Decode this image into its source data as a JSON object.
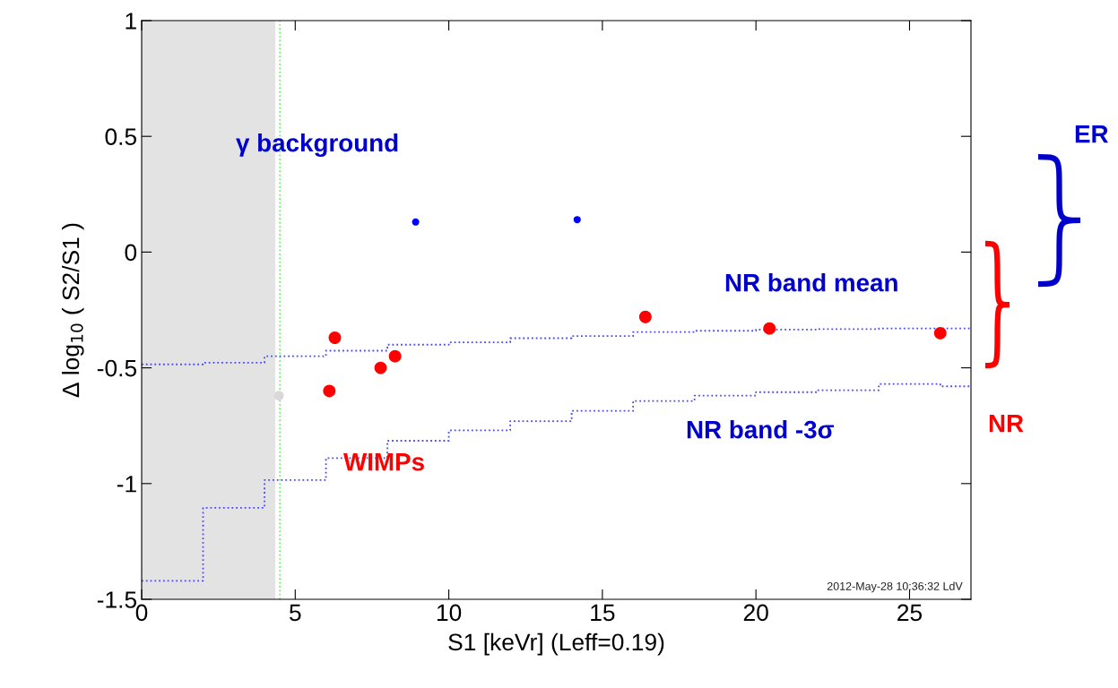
{
  "chart_data": {
    "type": "scatter",
    "xlabel": "S1 [keVr] (Leff=0.19)",
    "ylabel": "Δ log$_{10}$ ( S2/S1 )",
    "xlim": [
      0,
      27
    ],
    "ylim": [
      -1.5,
      1
    ],
    "xticks": [
      0,
      5,
      10,
      15,
      20,
      25
    ],
    "yticks": [
      -1.5,
      -1,
      -0.5,
      0,
      0.5,
      1
    ],
    "grid": false,
    "marker": "circle",
    "series": [
      {
        "color": "#ff0000",
        "x": [
          6.29,
          6.11,
          7.78,
          8.25,
          16.4,
          20.44,
          26.0
        ],
        "values": [
          -0.37,
          -0.6,
          -0.5,
          -0.45,
          -0.28,
          -0.33,
          -0.35
        ]
      },
      {
        "color": "#0000ff",
        "x": [
          8.92,
          14.18
        ],
        "values": [
          0.13,
          0.14
        ]
      },
      {
        "color": "#d9d9d9",
        "x": [
          4.47
        ],
        "values": [
          -0.62
        ]
      },
      {
        "type": "step",
        "color": "#4848ff",
        "line_style": "dotted",
        "marker": "none",
        "x": [
          0,
          2,
          4,
          6,
          8,
          10,
          12,
          14,
          16,
          18,
          20,
          22,
          24,
          26,
          27
        ],
        "values": [
          -0.485,
          -0.478,
          -0.45,
          -0.426,
          -0.4,
          -0.39,
          -0.372,
          -0.363,
          -0.345,
          -0.34,
          -0.335,
          -0.333,
          -0.33,
          -0.33,
          -0.33
        ]
      },
      {
        "type": "step",
        "color": "#4848ff",
        "line_style": "dotted",
        "marker": "none",
        "x": [
          0,
          2,
          4,
          6,
          8,
          10,
          12,
          14,
          16,
          18,
          20,
          22,
          24,
          26,
          27
        ],
        "values": [
          -1.42,
          -1.105,
          -0.985,
          -0.89,
          -0.815,
          -0.77,
          -0.73,
          -0.686,
          -0.643,
          -0.62,
          -0.605,
          -0.597,
          -0.57,
          -0.58,
          -0.58
        ]
      }
    ],
    "bands": [
      {
        "axis": "x",
        "from": 0,
        "to": 4.35,
        "color": "#e3e3e3"
      }
    ],
    "ref_lines": [
      {
        "axis": "x",
        "value": 4.5,
        "color": "#66ee66",
        "line_style": "dotted"
      }
    ],
    "annotations": [
      "γ background",
      "NR band mean",
      "NR band -3σ",
      "WIMPs",
      "ER",
      "NR",
      "2012-May-28 10:36:32 LdV"
    ]
  }
}
